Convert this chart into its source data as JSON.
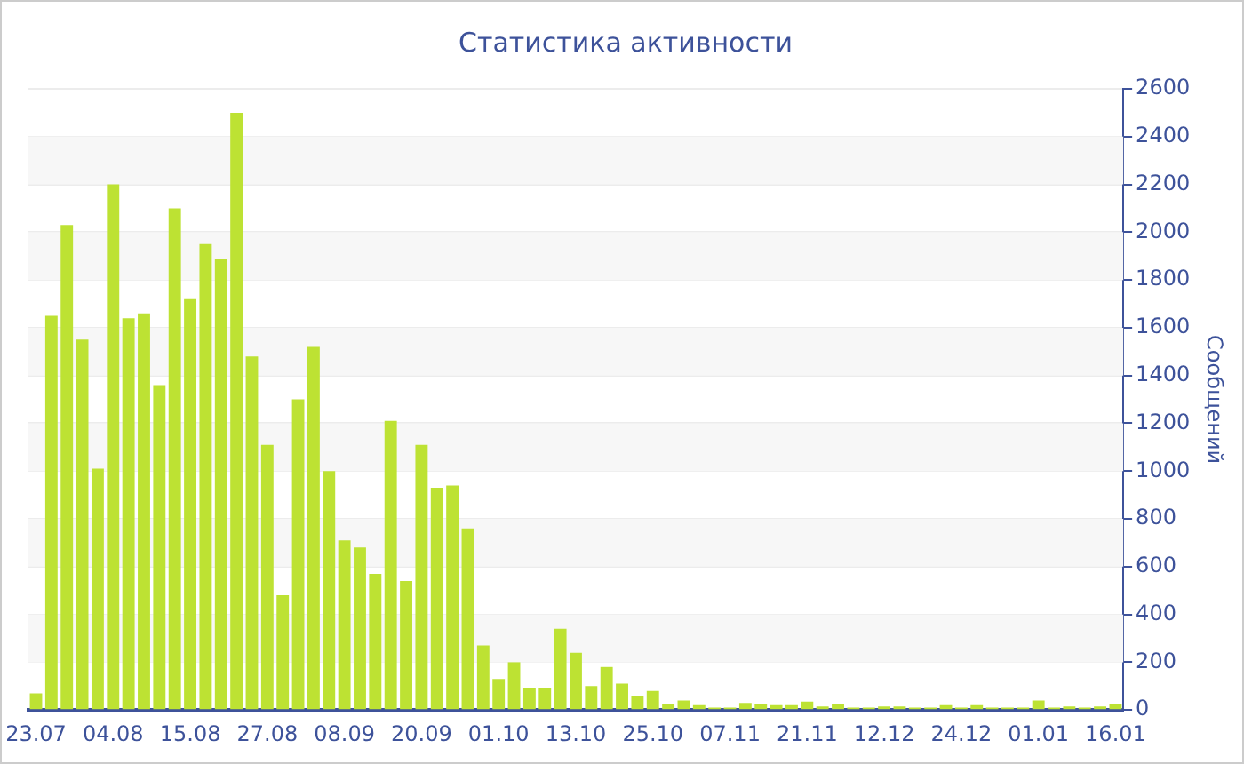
{
  "chart_data": {
    "type": "bar",
    "title": "Статистика активности",
    "ylabel": "Сообщений",
    "categories": [
      "23.07",
      null,
      null,
      null,
      null,
      "04.08",
      null,
      null,
      null,
      null,
      "15.08",
      null,
      null,
      null,
      null,
      "27.08",
      null,
      null,
      null,
      null,
      "08.09",
      null,
      null,
      null,
      null,
      "20.09",
      null,
      null,
      null,
      null,
      "01.10",
      null,
      null,
      null,
      null,
      "13.10",
      null,
      null,
      null,
      null,
      "25.10",
      null,
      null,
      null,
      null,
      "07.11",
      null,
      null,
      null,
      null,
      "21.11",
      null,
      null,
      null,
      null,
      "12.12",
      null,
      null,
      null,
      null,
      "24.12",
      null,
      null,
      null,
      null,
      "01.01",
      null,
      null,
      null,
      null,
      "16.01"
    ],
    "values": [
      70,
      1650,
      2030,
      1550,
      1010,
      2200,
      1640,
      1660,
      1360,
      2100,
      1720,
      1950,
      1890,
      2500,
      1480,
      1110,
      480,
      1300,
      1520,
      1000,
      710,
      680,
      570,
      1210,
      540,
      1110,
      930,
      940,
      760,
      270,
      130,
      200,
      90,
      90,
      340,
      240,
      100,
      180,
      110,
      60,
      80,
      25,
      40,
      20,
      10,
      10,
      30,
      25,
      20,
      20,
      35,
      15,
      25,
      10,
      10,
      15,
      15,
      10,
      10,
      20,
      10,
      20,
      10,
      10,
      10,
      40,
      10,
      15,
      10,
      15,
      25
    ],
    "color": "#bde233",
    "ylim": [
      0,
      2600
    ],
    "yticks": [
      0,
      200,
      400,
      600,
      800,
      1000,
      1200,
      1400,
      1600,
      1800,
      2000,
      2200,
      2400,
      2600
    ],
    "grid": "y",
    "legend": false
  }
}
